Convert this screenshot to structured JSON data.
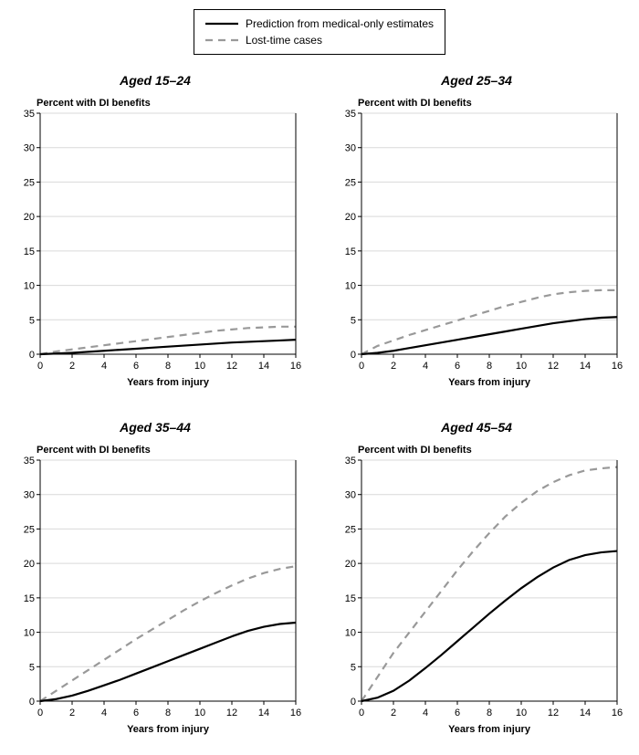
{
  "legend": {
    "items": [
      {
        "label": "Prediction from medical-only estimates",
        "style": "solid",
        "color": "#000000"
      },
      {
        "label": "Lost-time cases",
        "style": "dash",
        "color": "#999999"
      }
    ],
    "border_color": "#000000",
    "fontsize": 12
  },
  "global_style": {
    "background_color": "#ffffff",
    "grid_color": "#d9d9d9",
    "axis_color": "#000000",
    "tick_fontsize": 11,
    "title_fontsize": 14,
    "label_fontsize": 11,
    "solid_line_width": 2.2,
    "dash_line_width": 2.2,
    "dash_pattern": "8 6"
  },
  "panels": [
    {
      "title": "Aged 15–24",
      "ylabel": "Percent with DI benefits",
      "xlabel": "Years from injury",
      "xlim": [
        0,
        16
      ],
      "xtick_step": 2,
      "ylim": [
        0,
        35
      ],
      "ytick_step": 5,
      "series": {
        "solid": {
          "x": [
            0,
            1,
            2,
            3,
            4,
            5,
            6,
            7,
            8,
            9,
            10,
            11,
            12,
            13,
            14,
            15,
            16
          ],
          "y": [
            0,
            0.1,
            0.2,
            0.35,
            0.5,
            0.65,
            0.8,
            0.95,
            1.1,
            1.25,
            1.4,
            1.55,
            1.7,
            1.8,
            1.9,
            2.0,
            2.1
          ]
        },
        "dash": {
          "x": [
            0,
            1,
            2,
            3,
            4,
            5,
            6,
            7,
            8,
            9,
            10,
            11,
            12,
            13,
            14,
            15,
            16
          ],
          "y": [
            0,
            0.4,
            0.7,
            1.0,
            1.3,
            1.6,
            1.9,
            2.2,
            2.5,
            2.8,
            3.1,
            3.4,
            3.6,
            3.8,
            3.9,
            4.0,
            4.0
          ]
        }
      }
    },
    {
      "title": "Aged 25–34",
      "ylabel": "Percent with DI benefits",
      "xlabel": "Years from injury",
      "xlim": [
        0,
        16
      ],
      "xtick_step": 2,
      "ylim": [
        0,
        35
      ],
      "ytick_step": 5,
      "series": {
        "solid": {
          "x": [
            0,
            1,
            2,
            3,
            4,
            5,
            6,
            7,
            8,
            9,
            10,
            11,
            12,
            13,
            14,
            15,
            16
          ],
          "y": [
            0,
            0.2,
            0.5,
            0.9,
            1.3,
            1.7,
            2.1,
            2.5,
            2.9,
            3.3,
            3.7,
            4.1,
            4.5,
            4.8,
            5.1,
            5.3,
            5.4
          ]
        },
        "dash": {
          "x": [
            0,
            1,
            2,
            3,
            4,
            5,
            6,
            7,
            8,
            9,
            10,
            11,
            12,
            13,
            14,
            15,
            16
          ],
          "y": [
            0,
            1.2,
            2.0,
            2.8,
            3.5,
            4.2,
            4.9,
            5.6,
            6.3,
            7.0,
            7.6,
            8.2,
            8.7,
            9.0,
            9.2,
            9.3,
            9.3
          ]
        }
      }
    },
    {
      "title": "Aged 35–44",
      "ylabel": "Percent with DI benefits",
      "xlabel": "Years from injury",
      "xlabel_title_fontsize": 11,
      "xlim": [
        0,
        16
      ],
      "xtick_step": 2,
      "ylim": [
        0,
        35
      ],
      "ytick_step": 5,
      "series": {
        "solid": {
          "x": [
            0,
            1,
            2,
            3,
            4,
            5,
            6,
            7,
            8,
            9,
            10,
            11,
            12,
            13,
            14,
            15,
            16
          ],
          "y": [
            0,
            0.3,
            0.8,
            1.5,
            2.3,
            3.1,
            4.0,
            4.9,
            5.8,
            6.7,
            7.6,
            8.5,
            9.4,
            10.2,
            10.8,
            11.2,
            11.4
          ]
        },
        "dash": {
          "x": [
            0,
            1,
            2,
            3,
            4,
            5,
            6,
            7,
            8,
            9,
            10,
            11,
            12,
            13,
            14,
            15,
            16
          ],
          "y": [
            0,
            1.5,
            3.0,
            4.5,
            6.0,
            7.5,
            9.0,
            10.4,
            11.8,
            13.2,
            14.5,
            15.7,
            16.8,
            17.8,
            18.6,
            19.2,
            19.6
          ]
        }
      }
    },
    {
      "title": "Aged 45–54",
      "ylabel": "Percent with DI benefits",
      "xlabel": "Years from injury",
      "xlim": [
        0,
        16
      ],
      "xtick_step": 2,
      "ylim": [
        0,
        35
      ],
      "ytick_step": 5,
      "series": {
        "solid": {
          "x": [
            0,
            1,
            2,
            3,
            4,
            5,
            6,
            7,
            8,
            9,
            10,
            11,
            12,
            13,
            14,
            15,
            16
          ],
          "y": [
            0,
            0.5,
            1.5,
            3.0,
            4.8,
            6.7,
            8.7,
            10.7,
            12.7,
            14.6,
            16.4,
            18.0,
            19.4,
            20.5,
            21.2,
            21.6,
            21.8
          ]
        },
        "dash": {
          "x": [
            0,
            1,
            2,
            3,
            4,
            5,
            6,
            7,
            8,
            9,
            10,
            11,
            12,
            13,
            14,
            15,
            16
          ],
          "y": [
            0,
            3.5,
            7.0,
            10.0,
            13.0,
            16.0,
            19.0,
            21.8,
            24.4,
            26.8,
            28.8,
            30.5,
            31.8,
            32.8,
            33.5,
            33.8,
            34.0
          ]
        }
      }
    }
  ]
}
